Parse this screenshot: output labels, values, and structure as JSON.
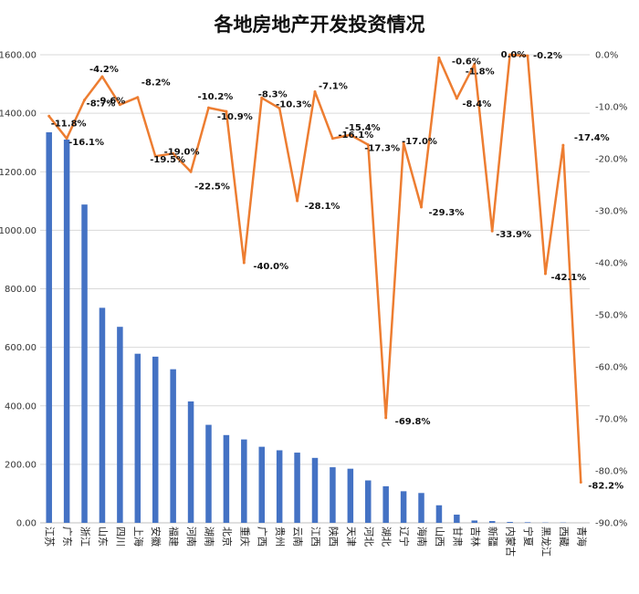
{
  "chart_data": {
    "type": "bar+line",
    "title": "各地房地产开发投资情况",
    "categories": [
      "江苏",
      "广东",
      "浙江",
      "山东",
      "四川",
      "上海",
      "安徽",
      "福建",
      "河南",
      "湖南",
      "北京",
      "重庆",
      "广西",
      "贵州",
      "云南",
      "江西",
      "陕西",
      "天津",
      "河北",
      "湖北",
      "辽宁",
      "海南",
      "山西",
      "甘肃",
      "吉林",
      "新疆",
      "内蒙古",
      "宁夏",
      "黑龙江",
      "西藏",
      "青海"
    ],
    "series": [
      {
        "axis": "left",
        "type": "bar",
        "color": "#4472c4",
        "values": [
          1335,
          1310,
          1088,
          735,
          670,
          578,
          568,
          525,
          415,
          335,
          300,
          285,
          260,
          248,
          240,
          222,
          190,
          185,
          145,
          125,
          108,
          102,
          60,
          28,
          8,
          6,
          3,
          2,
          1,
          1,
          0
        ]
      },
      {
        "axis": "right",
        "type": "line",
        "color": "#ed7d31",
        "values": [
          -11.8,
          -16.1,
          -8.7,
          -4.2,
          -9.6,
          -8.2,
          -19.5,
          -19.0,
          -22.5,
          -10.2,
          -10.9,
          -40.0,
          -8.3,
          -10.3,
          -28.1,
          -7.1,
          -16.1,
          -15.4,
          -17.3,
          -69.8,
          -17.0,
          -29.3,
          -0.6,
          -8.4,
          -1.8,
          -33.9,
          0.0,
          -0.2,
          -42.1,
          -17.4,
          -82.2
        ],
        "labels": [
          "-11.8%",
          "-16.1%",
          "-8.7%",
          "-4.2%",
          "-9.6%",
          "-8.2%",
          "-19.5%",
          "-19.0%",
          "-22.5%",
          "-10.2%",
          "-10.9%",
          "-40.0%",
          "-8.3%",
          "-10.3%",
          "-28.1%",
          "-7.1%",
          "-16.1%",
          "-15.4%",
          "-17.3%",
          "-69.8%",
          "-17.0%",
          "-29.3%",
          "-0.6%",
          "-8.4%",
          "-1.8%",
          "-33.9%",
          "0.0%",
          "-0.2%",
          "-42.1%",
          "-17.4%",
          "-82.2%"
        ]
      }
    ],
    "y_left": {
      "min": 0,
      "max": 1600,
      "ticks": [
        "0.00",
        "200.00",
        "400.00",
        "600.00",
        "800.00",
        "1000.00",
        "1200.00",
        "1400.00",
        "1600.00"
      ]
    },
    "y_right": {
      "min": -90,
      "max": 0,
      "ticks": [
        "0.0%",
        "-10.0%",
        "-20.0%",
        "-30.0%",
        "-40.0%",
        "-50.0%",
        "-60.0%",
        "-70.0%",
        "-80.0%",
        "-90.0%"
      ]
    },
    "grid": true
  }
}
